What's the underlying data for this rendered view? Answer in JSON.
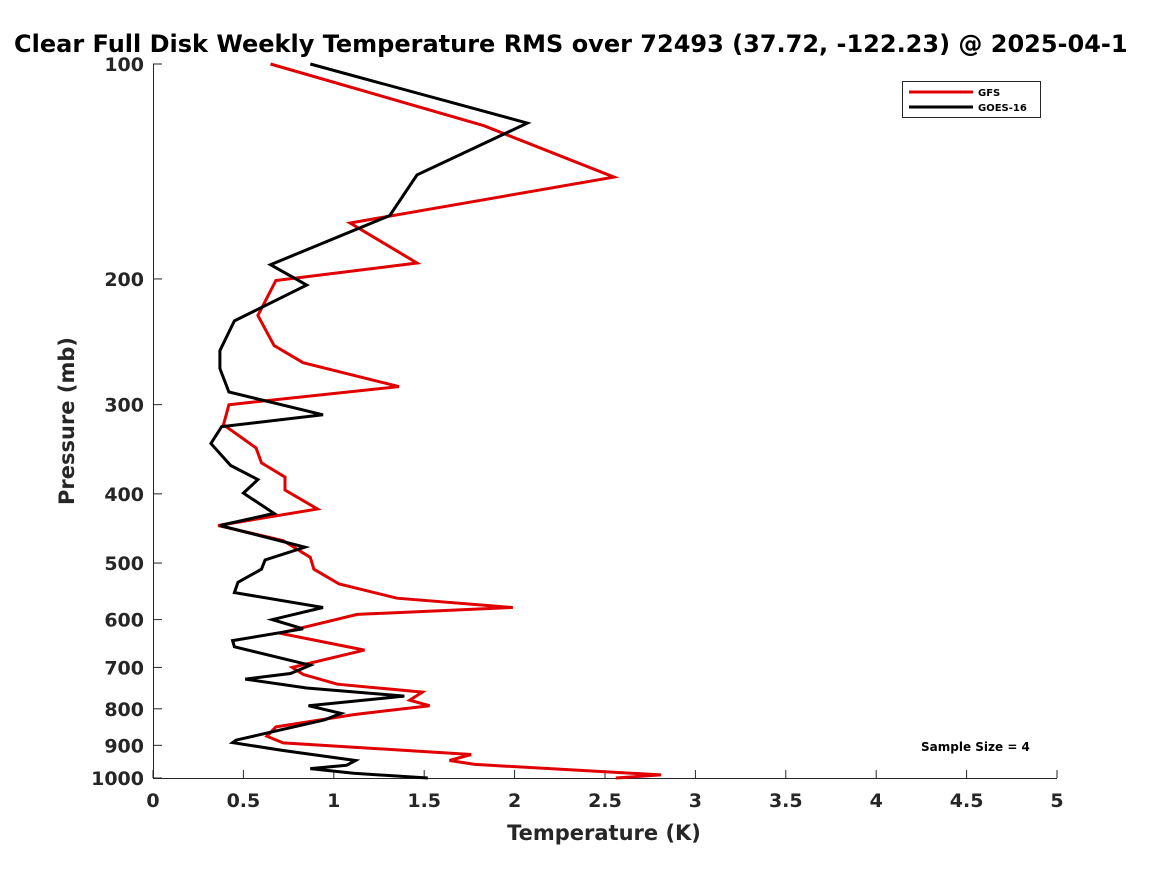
{
  "chart_data": {
    "type": "line",
    "title": "Clear Full Disk Weekly Temperature RMS over 72493 (37.72, -122.23) @ 2025-04-1",
    "xlabel": "Temperature (K)",
    "ylabel": "Pressure (mb)",
    "xlim": [
      0,
      5
    ],
    "ylim": [
      1000,
      100
    ],
    "yscale": "log",
    "x_ticks": [
      0,
      0.5,
      1,
      1.5,
      2,
      2.5,
      3,
      3.5,
      4,
      4.5,
      5
    ],
    "x_tick_labels": [
      "0",
      "0.5",
      "1",
      "1.5",
      "2",
      "2.5",
      "3",
      "3.5",
      "4",
      "4.5",
      "5"
    ],
    "y_ticks": [
      100,
      200,
      300,
      400,
      500,
      600,
      700,
      800,
      900,
      1000
    ],
    "y_tick_labels": [
      "100",
      "200",
      "300",
      "400",
      "500",
      "600",
      "700",
      "800",
      "900",
      "1000"
    ],
    "grid": false,
    "legend_position": "top-right",
    "annotation": "Sample Size = 4",
    "series": [
      {
        "name": "GFS",
        "color": "#e00000",
        "points": [
          [
            0.65,
            100
          ],
          [
            1.83,
            122
          ],
          [
            2.55,
            144
          ],
          [
            1.09,
            167
          ],
          [
            1.46,
            190
          ],
          [
            0.68,
            201
          ],
          [
            0.58,
            225
          ],
          [
            0.67,
            248
          ],
          [
            0.83,
            262
          ],
          [
            1.36,
            283
          ],
          [
            0.42,
            300
          ],
          [
            0.39,
            320
          ],
          [
            0.57,
            345
          ],
          [
            0.6,
            362
          ],
          [
            0.73,
            379
          ],
          [
            0.73,
            395
          ],
          [
            0.91,
            420
          ],
          [
            0.36,
            443
          ],
          [
            0.72,
            465
          ],
          [
            0.87,
            491
          ],
          [
            0.89,
            510
          ],
          [
            1.03,
            535
          ],
          [
            1.35,
            560
          ],
          [
            1.99,
            577
          ],
          [
            1.13,
            590
          ],
          [
            0.7,
            627
          ],
          [
            1.17,
            662
          ],
          [
            0.77,
            700
          ],
          [
            0.83,
            716
          ],
          [
            1.02,
            739
          ],
          [
            1.49,
            758
          ],
          [
            1.42,
            778
          ],
          [
            1.53,
            792
          ],
          [
            1.11,
            815
          ],
          [
            0.68,
            848
          ],
          [
            0.63,
            874
          ],
          [
            0.72,
            893
          ],
          [
            1.76,
            927
          ],
          [
            1.64,
            945
          ],
          [
            1.78,
            957
          ],
          [
            2.81,
            990
          ],
          [
            2.56,
            1000
          ]
        ]
      },
      {
        "name": "GOES-16",
        "color": "#000000",
        "points": [
          [
            0.87,
            100
          ],
          [
            2.07,
            121
          ],
          [
            1.46,
            143
          ],
          [
            1.31,
            163
          ],
          [
            0.65,
            191
          ],
          [
            0.85,
            204
          ],
          [
            0.45,
            229
          ],
          [
            0.37,
            252
          ],
          [
            0.37,
            267
          ],
          [
            0.42,
            288
          ],
          [
            0.94,
            310
          ],
          [
            0.38,
            322
          ],
          [
            0.32,
            340
          ],
          [
            0.43,
            365
          ],
          [
            0.58,
            382
          ],
          [
            0.5,
            399
          ],
          [
            0.67,
            426
          ],
          [
            0.37,
            443
          ],
          [
            0.84,
            475
          ],
          [
            0.62,
            495
          ],
          [
            0.6,
            510
          ],
          [
            0.47,
            532
          ],
          [
            0.45,
            550
          ],
          [
            0.94,
            577
          ],
          [
            0.66,
            600
          ],
          [
            0.83,
            618
          ],
          [
            0.44,
            642
          ],
          [
            0.45,
            655
          ],
          [
            0.87,
            695
          ],
          [
            0.76,
            714
          ],
          [
            0.51,
            727
          ],
          [
            0.85,
            748
          ],
          [
            1.39,
            768
          ],
          [
            0.86,
            792
          ],
          [
            1.04,
            812
          ],
          [
            0.95,
            829
          ],
          [
            0.46,
            885
          ],
          [
            0.44,
            892
          ],
          [
            0.72,
            915
          ],
          [
            1.12,
            945
          ],
          [
            1.07,
            960
          ],
          [
            0.87,
            970
          ],
          [
            1.11,
            985
          ],
          [
            1.52,
            1000
          ]
        ]
      }
    ]
  }
}
